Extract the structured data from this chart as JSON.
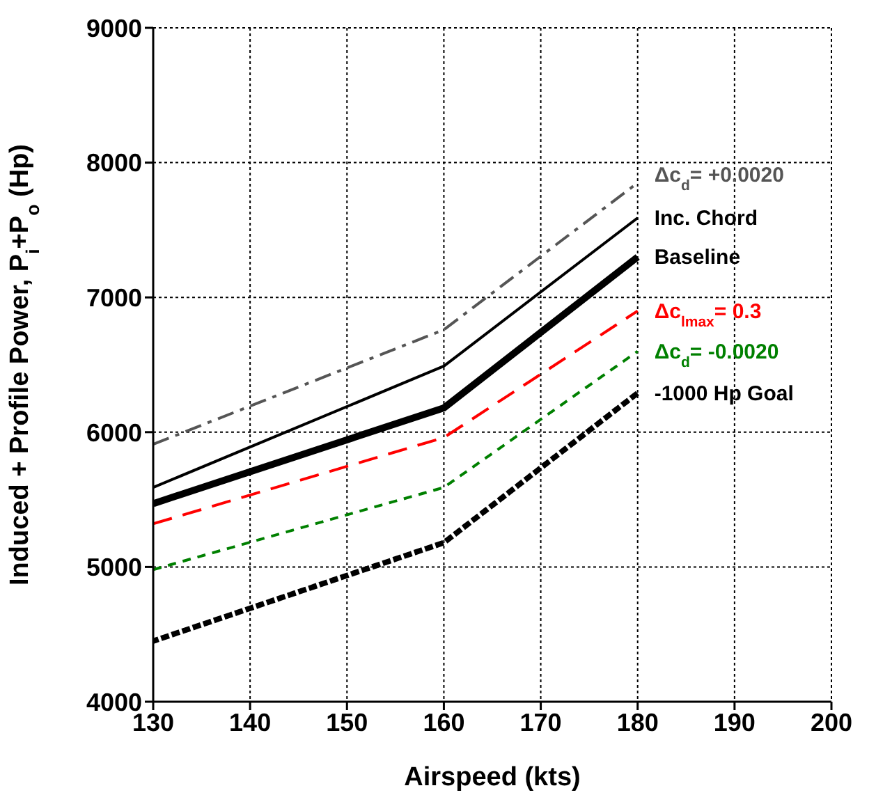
{
  "chart_data": {
    "type": "line",
    "xlabel": "Airspeed (kts)",
    "ylabel": "Induced + Profile Power, P$_{i}$+P$_{o}$ (Hp)",
    "x": [
      130,
      160,
      180
    ],
    "series": [
      {
        "name": "Δc$_{d}$= +0.0020",
        "color": "#555555",
        "line_style": "dashdot",
        "values": [
          5910,
          6760,
          7850
        ]
      },
      {
        "name": "Inc. Chord",
        "color": "#000000",
        "line_style": "solid",
        "values": [
          5590,
          6490,
          7590
        ]
      },
      {
        "name": "Baseline",
        "color": "#000000",
        "line_style": "solid",
        "values": [
          5470,
          6180,
          7300
        ]
      },
      {
        "name": "Δc$_{lmax}$= 0.3",
        "color": "#ff0000",
        "line_style": "dashed",
        "values": [
          5320,
          5960,
          6900
        ]
      },
      {
        "name": "Δc$_{d}$= -0.0020",
        "color": "#008000",
        "line_style": "dashed",
        "values": [
          4980,
          5590,
          6600
        ]
      },
      {
        "name": "-1000 Hp Goal",
        "color": "#000000",
        "line_style": "dotted",
        "values": [
          4450,
          5180,
          6290
        ]
      }
    ],
    "xlim": [
      130,
      200
    ],
    "xticks": [
      130,
      140,
      150,
      160,
      170,
      180,
      190,
      200
    ],
    "ylim": [
      4000,
      9000
    ],
    "yticks": [
      4000,
      5000,
      6000,
      7000,
      8000,
      9000
    ],
    "grid": true,
    "marker": "none"
  }
}
